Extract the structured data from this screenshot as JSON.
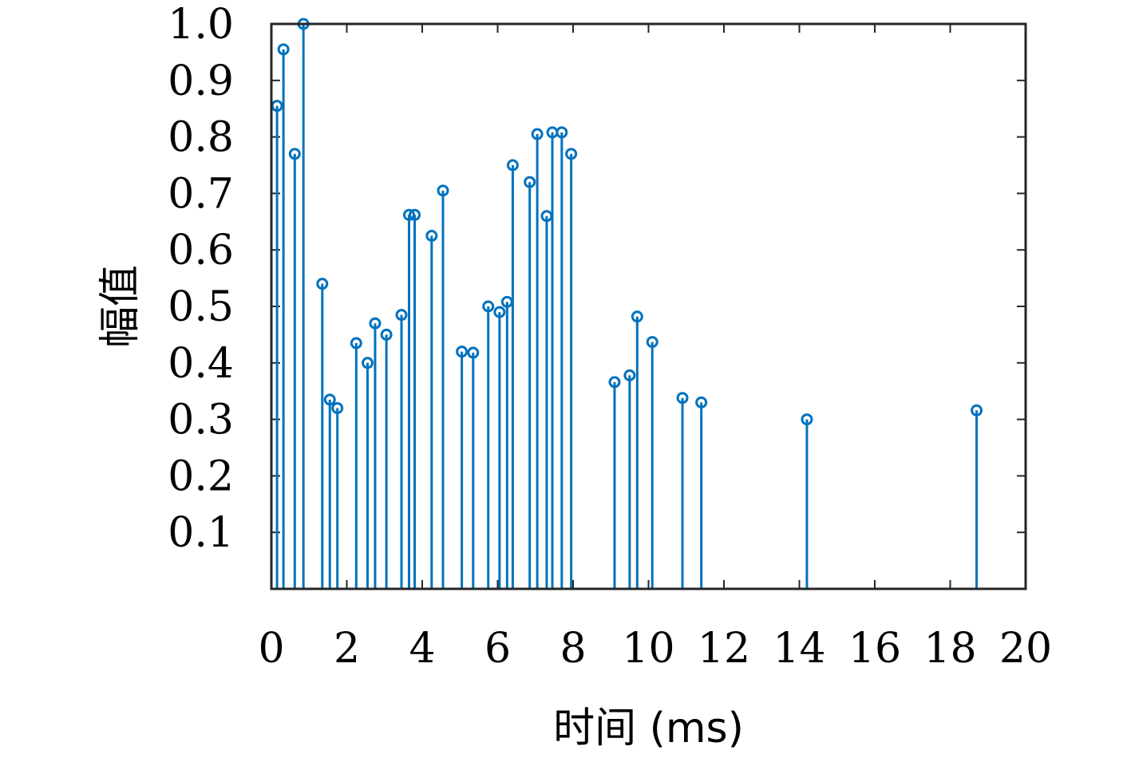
{
  "chart_data": {
    "type": "stem",
    "xlabel": "时间 (ms)",
    "ylabel": "幅值",
    "xlim": [
      0,
      20
    ],
    "ylim": [
      0,
      1.0
    ],
    "xticks": [
      0,
      2,
      4,
      6,
      8,
      10,
      12,
      14,
      16,
      18,
      20
    ],
    "yticks": [
      0.1,
      0.2,
      0.3,
      0.4,
      0.5,
      0.6,
      0.7,
      0.8,
      0.9,
      1.0
    ],
    "ytick_labels": [
      "0.1",
      "0.2",
      "0.3",
      "0.4",
      "0.5",
      "0.6",
      "0.7",
      "0.8",
      "0.9",
      "1.0"
    ],
    "xtick_labels": [
      "0",
      "2",
      "4",
      "6",
      "8",
      "10",
      "12",
      "14",
      "16",
      "18",
      "20"
    ],
    "grid": false,
    "box": true,
    "color": "#0072BD",
    "x": [
      0.15,
      0.32,
      0.62,
      0.85,
      1.35,
      1.55,
      1.75,
      2.25,
      2.55,
      2.75,
      3.05,
      3.45,
      3.65,
      3.8,
      4.25,
      4.55,
      5.05,
      5.35,
      5.75,
      6.05,
      6.25,
      6.4,
      6.85,
      7.05,
      7.3,
      7.45,
      7.7,
      7.95,
      9.1,
      9.5,
      9.7,
      10.1,
      10.9,
      11.4,
      14.2,
      18.7
    ],
    "y": [
      0.855,
      0.955,
      0.77,
      1.0,
      0.54,
      0.335,
      0.32,
      0.435,
      0.4,
      0.47,
      0.45,
      0.485,
      0.662,
      0.662,
      0.625,
      0.705,
      0.42,
      0.418,
      0.5,
      0.49,
      0.508,
      0.75,
      0.72,
      0.805,
      0.66,
      0.808,
      0.808,
      0.77,
      0.366,
      0.378,
      0.482,
      0.437,
      0.338,
      0.33,
      0.3,
      0.316
    ]
  }
}
